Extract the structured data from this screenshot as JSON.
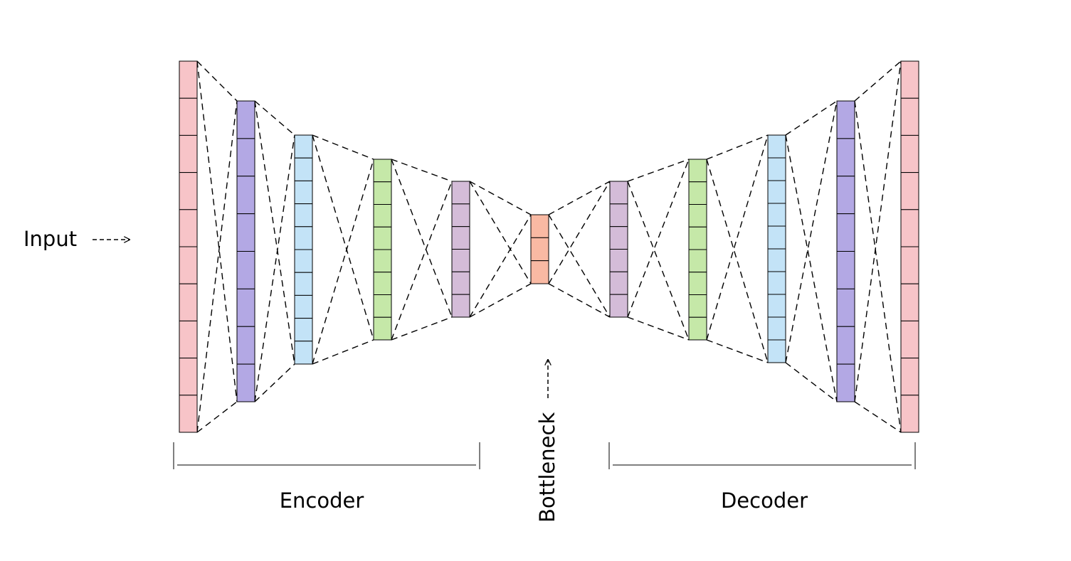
{
  "labels": {
    "input": "Input",
    "encoder": "Encoder",
    "bottleneck": "Bottleneck",
    "decoder": "Decoder"
  },
  "colors": {
    "pink": "#f7c4c8",
    "purple": "#b3a8e4",
    "blue": "#c3e3f7",
    "green": "#c5e8a8",
    "mauve": "#d4bcd8",
    "salmon": "#f9b9a3",
    "edge": "#000000"
  },
  "layers": [
    {
      "section": "encoder",
      "cells": 10,
      "color": "pink"
    },
    {
      "section": "encoder",
      "cells": 8,
      "color": "purple"
    },
    {
      "section": "encoder",
      "cells": 10,
      "color": "blue"
    },
    {
      "section": "encoder",
      "cells": 8,
      "color": "green"
    },
    {
      "section": "encoder",
      "cells": 6,
      "color": "mauve"
    },
    {
      "section": "bottleneck",
      "cells": 3,
      "color": "salmon"
    },
    {
      "section": "decoder",
      "cells": 6,
      "color": "mauve"
    },
    {
      "section": "decoder",
      "cells": 8,
      "color": "green"
    },
    {
      "section": "decoder",
      "cells": 10,
      "color": "blue"
    },
    {
      "section": "decoder",
      "cells": 8,
      "color": "purple"
    },
    {
      "section": "decoder",
      "cells": 10,
      "color": "pink"
    }
  ]
}
